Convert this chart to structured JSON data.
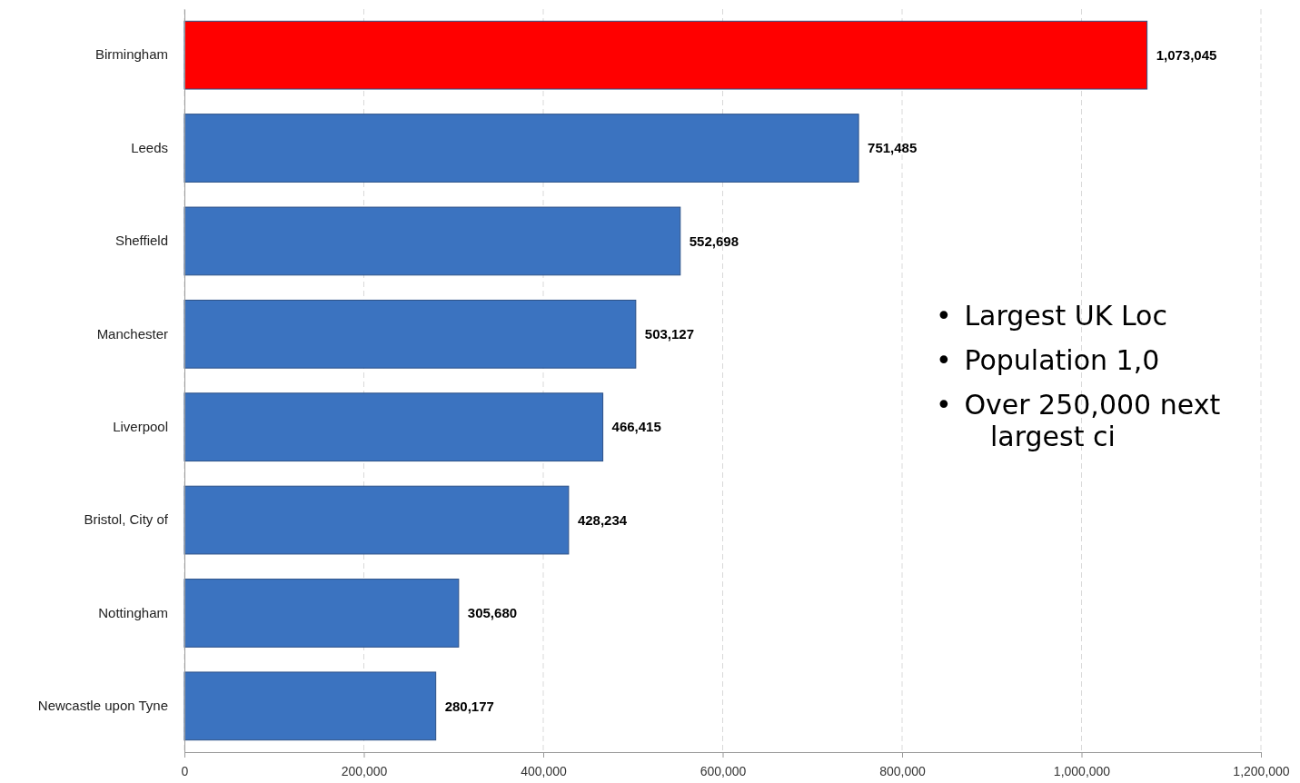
{
  "chart_data": {
    "type": "bar",
    "orientation": "horizontal",
    "categories": [
      "Birmingham",
      "Leeds",
      "Sheffield",
      "Manchester",
      "Liverpool",
      "Bristol, City of",
      "Nottingham",
      "Newcastle upon Tyne"
    ],
    "values": [
      1073045,
      751485,
      552698,
      503127,
      466415,
      428234,
      305680,
      280177
    ],
    "colors": [
      "#ff0000",
      "#3b73c0",
      "#3b73c0",
      "#3b73c0",
      "#3b73c0",
      "#3b73c0",
      "#3b73c0",
      "#3b73c0"
    ],
    "value_labels": [
      "1,073,045",
      "751,485",
      "552,698",
      "503,127",
      "466,415",
      "428,234",
      "305,680",
      "280,177"
    ],
    "xlim": [
      0,
      1200000
    ],
    "xticks": [
      {
        "value": 0,
        "label": "0"
      },
      {
        "value": 200000,
        "label": "200,000"
      },
      {
        "value": 400000,
        "label": "400,000"
      },
      {
        "value": 600000,
        "label": "600,000"
      },
      {
        "value": 800000,
        "label": "800,000"
      },
      {
        "value": 1000000,
        "label": "1,000,000"
      },
      {
        "value": 1200000,
        "label": "1,200,000"
      }
    ],
    "grid": "x",
    "annotations": [
      "•\tLargest UK Loc",
      "•\tPopulation 1,0",
      "•\tOver 250,000 next largest ci"
    ]
  }
}
